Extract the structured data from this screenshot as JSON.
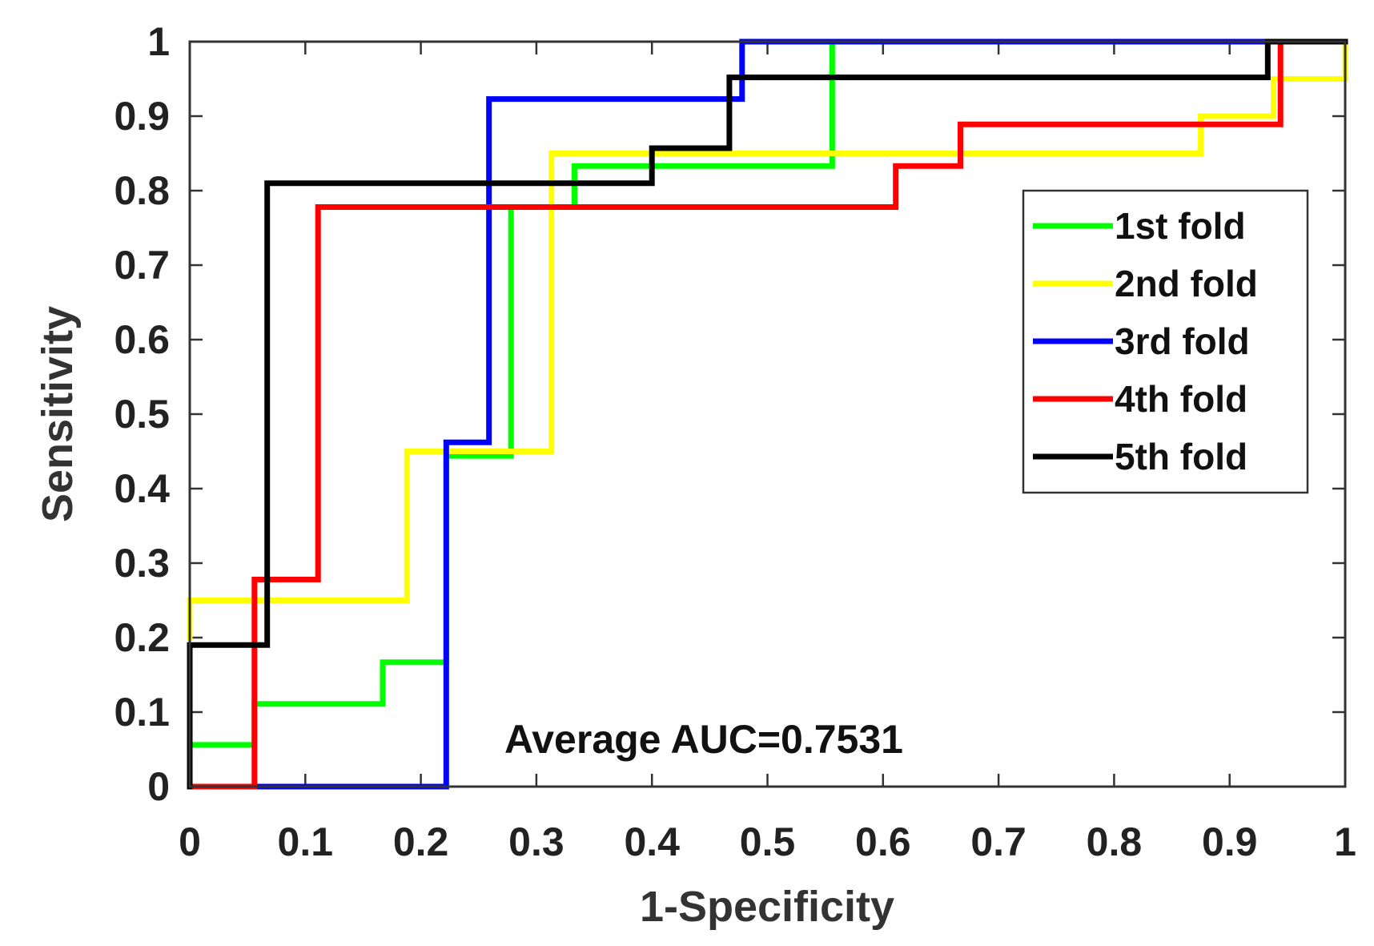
{
  "chart_data": {
    "type": "line",
    "xlabel": "1-Specificity",
    "ylabel": "Sensitivity",
    "xlim": [
      0,
      1
    ],
    "ylim": [
      0,
      1
    ],
    "xticks": [
      0,
      0.1,
      0.2,
      0.3,
      0.4,
      0.5,
      0.6,
      0.7,
      0.8,
      0.9,
      1
    ],
    "yticks": [
      0,
      0.1,
      0.2,
      0.3,
      0.4,
      0.5,
      0.6,
      0.7,
      0.8,
      0.9,
      1
    ],
    "xtick_labels": [
      "0",
      "0.1",
      "0.2",
      "0.3",
      "0.4",
      "0.5",
      "0.6",
      "0.7",
      "0.8",
      "0.9",
      "1"
    ],
    "ytick_labels": [
      "0",
      "0.1",
      "0.2",
      "0.3",
      "0.4",
      "0.5",
      "0.6",
      "0.7",
      "0.8",
      "0.9",
      "1"
    ],
    "legend_position": "top-right",
    "annotation": "Average AUC=0.7531",
    "series": [
      {
        "name": "1st fold",
        "color": "#00ff00",
        "x": [
          0,
          0,
          0.056,
          0.056,
          0.167,
          0.167,
          0.222,
          0.222,
          0.278,
          0.278,
          0.333,
          0.333,
          0.556,
          0.556,
          1
        ],
        "y": [
          0,
          0.056,
          0.056,
          0.111,
          0.111,
          0.167,
          0.167,
          0.444,
          0.444,
          0.778,
          0.778,
          0.833,
          0.833,
          1,
          1
        ]
      },
      {
        "name": "2nd fold",
        "color": "#ffff00",
        "x": [
          0,
          0,
          0.188,
          0.188,
          0.313,
          0.313,
          0.875,
          0.875,
          0.938,
          0.938,
          1,
          1
        ],
        "y": [
          0.2,
          0.25,
          0.25,
          0.45,
          0.45,
          0.85,
          0.85,
          0.9,
          0.9,
          0.95,
          0.95,
          1
        ]
      },
      {
        "name": "3rd fold",
        "color": "#0000ff",
        "x": [
          0,
          0.222,
          0.222,
          0.259,
          0.259,
          0.478,
          0.478,
          1
        ],
        "y": [
          0,
          0,
          0.462,
          0.462,
          0.923,
          0.923,
          1,
          1
        ]
      },
      {
        "name": "4th fold",
        "color": "#ff0000",
        "x": [
          0,
          0.056,
          0.056,
          0.111,
          0.111,
          0.611,
          0.611,
          0.667,
          0.667,
          0.944,
          0.944,
          1
        ],
        "y": [
          0,
          0,
          0.278,
          0.278,
          0.778,
          0.778,
          0.833,
          0.833,
          0.889,
          0.889,
          1,
          1
        ]
      },
      {
        "name": "5th fold",
        "color": "#000000",
        "x": [
          0,
          0,
          0.067,
          0.067,
          0.4,
          0.4,
          0.467,
          0.467,
          0.933,
          0.933,
          1
        ],
        "y": [
          0,
          0.19,
          0.19,
          0.81,
          0.81,
          0.857,
          0.857,
          0.952,
          0.952,
          1,
          1
        ]
      }
    ]
  }
}
